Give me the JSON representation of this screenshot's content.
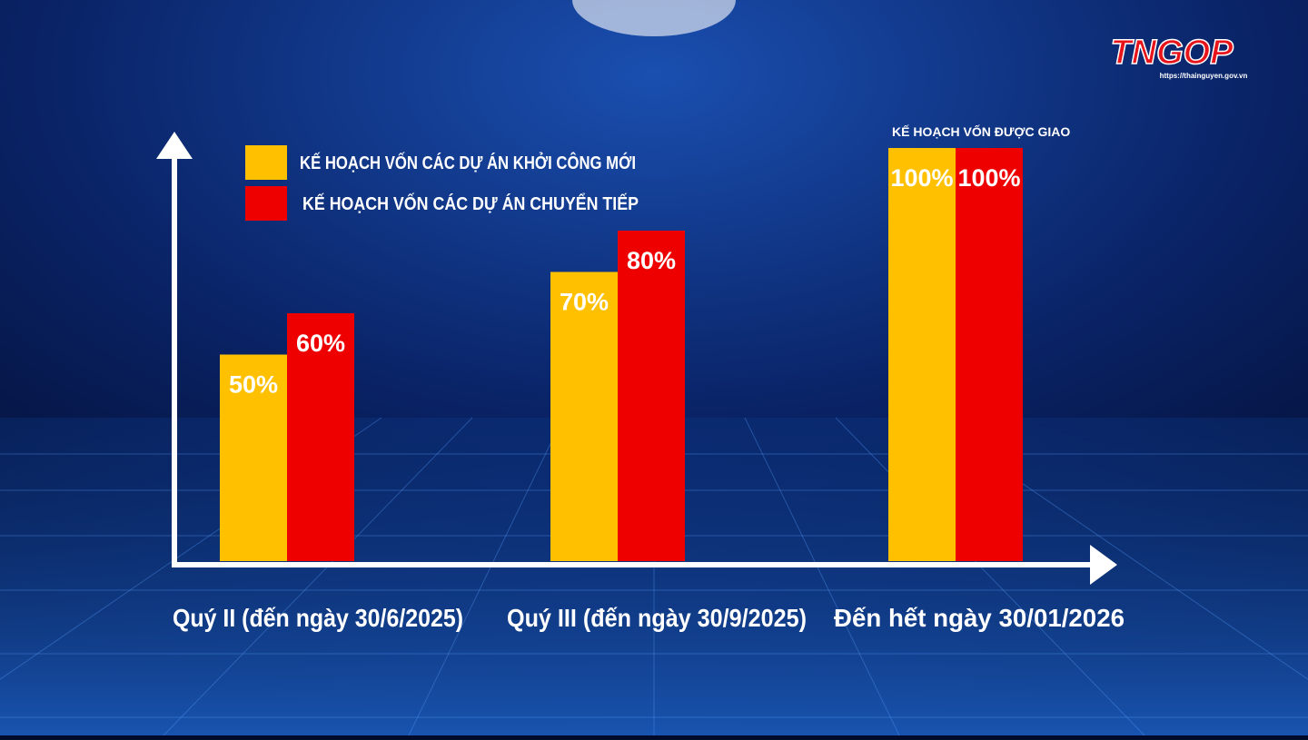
{
  "chart_data": {
    "type": "bar",
    "annotation": "KẾ HOẠCH VỐN ĐƯỢC GIAO",
    "categories": [
      "Quý II (đến ngày 30/6/2025)",
      "Quý III (đến ngày 30/9/2025)",
      "Đến hết ngày 30/01/2026"
    ],
    "series": [
      {
        "name": "KẾ HOẠCH VỐN  CÁC DỰ ÁN KHỞI CÔNG MỚI",
        "color": "#ffc000",
        "values": [
          50,
          70,
          100
        ],
        "value_labels": [
          "50%",
          "70%",
          "100%"
        ]
      },
      {
        "name": "KẾ HOẠCH VỐN  CÁC DỰ ÁN CHUYỂN TIẾP",
        "color": "#ee0000",
        "values": [
          60,
          80,
          100
        ],
        "value_labels": [
          "60%",
          "80%",
          "100%"
        ]
      }
    ],
    "ylim": [
      0,
      100
    ]
  },
  "logo": {
    "text": "TNGOP",
    "url": "https://thainguyen.gov.vn"
  }
}
